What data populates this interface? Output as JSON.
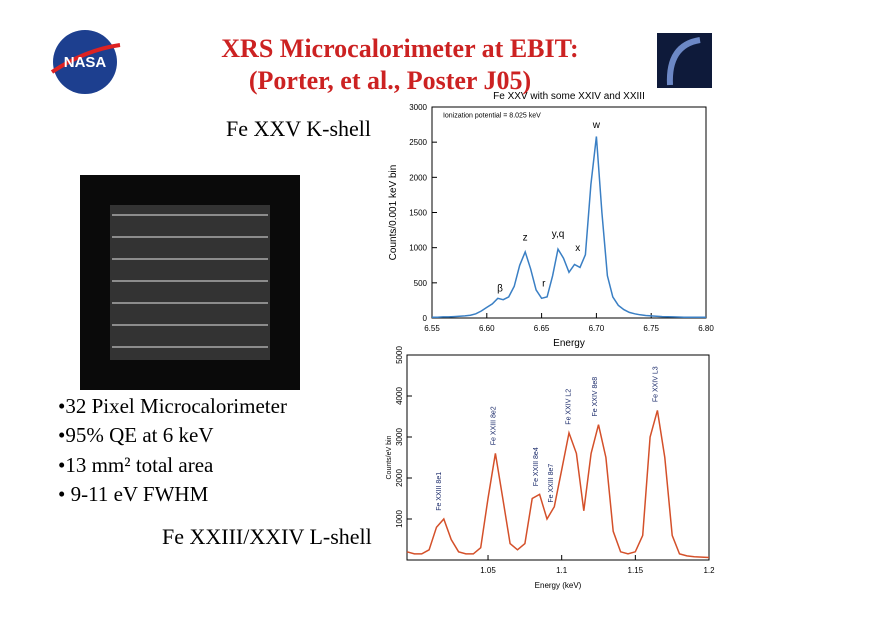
{
  "slide": {
    "logo": "NASA",
    "title_line1": "XRS Microcalorimeter at EBIT:",
    "title_line2": "(Porter, et al., Poster J05)",
    "label_top": "Fe XXV K-shell",
    "label_bottom": "Fe XXIII/XXIV L-shell",
    "bullets": [
      "•32 Pixel Microcalorimeter",
      "•95% QE at 6 keV",
      "•13 mm² total area",
      "• 9-11 eV FWHM"
    ]
  },
  "chart_data": [
    {
      "type": "line",
      "title": "Fe XXV with some XXIV and XXIII",
      "xlabel": "Energy",
      "ylabel": "Counts/0.001 keV bin",
      "x": [
        6.55,
        6.555,
        6.56,
        6.565,
        6.57,
        6.575,
        6.58,
        6.585,
        6.59,
        6.595,
        6.6,
        6.605,
        6.61,
        6.615,
        6.62,
        6.625,
        6.63,
        6.635,
        6.64,
        6.645,
        6.65,
        6.655,
        6.66,
        6.665,
        6.67,
        6.675,
        6.68,
        6.685,
        6.69,
        6.695,
        6.7,
        6.705,
        6.71,
        6.715,
        6.72,
        6.725,
        6.73,
        6.735,
        6.74,
        6.745,
        6.75,
        6.76,
        6.77,
        6.78,
        6.79,
        6.8
      ],
      "series": [
        {
          "name": "Fe XXV",
          "color": "#3a7fc4",
          "values": [
            10,
            10,
            15,
            15,
            20,
            25,
            30,
            40,
            60,
            100,
            150,
            200,
            280,
            260,
            300,
            450,
            750,
            940,
            700,
            400,
            280,
            300,
            600,
            980,
            850,
            650,
            760,
            720,
            900,
            1900,
            2580,
            1500,
            600,
            300,
            180,
            120,
            80,
            60,
            45,
            35,
            30,
            20,
            15,
            12,
            10,
            10
          ]
        }
      ],
      "xlim": [
        6.55,
        6.8
      ],
      "xticks": [
        6.55,
        {
          "value": 6.6,
          "label": "6.60"
        },
        6.65,
        {
          "value": 6.7,
          "label": "6.70"
        },
        6.75,
        {
          "value": 6.8,
          "label": "6.80"
        }
      ],
      "ylim": [
        0,
        3000
      ],
      "yticks": [
        0,
        500,
        1000,
        1500,
        2000,
        2500,
        3000
      ],
      "annotations": [
        {
          "text": "Ionization potential = 8.025 keV",
          "x": 6.56,
          "y": 2850
        },
        {
          "text": "w",
          "x": 6.7,
          "y": 2700
        },
        {
          "text": "z",
          "x": 6.635,
          "y": 1100
        },
        {
          "text": "y,q",
          "x": 6.665,
          "y": 1150
        },
        {
          "text": "x",
          "x": 6.683,
          "y": 950
        },
        {
          "text": "r",
          "x": 6.652,
          "y": 450
        },
        {
          "text": "β",
          "x": 6.612,
          "y": 380
        }
      ]
    },
    {
      "type": "line",
      "xlabel": "Energy (keV)",
      "ylabel": "Counts/eV bin",
      "x": [
        0.995,
        1.0,
        1.005,
        1.01,
        1.015,
        1.02,
        1.025,
        1.03,
        1.035,
        1.04,
        1.045,
        1.05,
        1.055,
        1.06,
        1.065,
        1.07,
        1.075,
        1.08,
        1.085,
        1.09,
        1.095,
        1.1,
        1.105,
        1.11,
        1.115,
        1.12,
        1.125,
        1.13,
        1.135,
        1.14,
        1.145,
        1.15,
        1.155,
        1.16,
        1.165,
        1.17,
        1.175,
        1.18,
        1.185,
        1.19,
        1.195,
        1.2
      ],
      "series": [
        {
          "name": "Fe L-shell",
          "color": "#d4502a",
          "values": [
            200,
            150,
            150,
            250,
            800,
            1000,
            500,
            200,
            150,
            150,
            300,
            1500,
            2600,
            1500,
            400,
            250,
            400,
            1500,
            1600,
            1000,
            1300,
            2200,
            3100,
            2600,
            1200,
            2600,
            3300,
            2500,
            700,
            200,
            150,
            200,
            600,
            3000,
            3650,
            2500,
            600,
            150,
            100,
            80,
            70,
            60
          ]
        }
      ],
      "xlim": [
        0.995,
        1.2
      ],
      "xticks": [
        1.05,
        1.1,
        1.15,
        1.2
      ],
      "ylim": [
        0,
        5000
      ],
      "yticks": [
        1000,
        2000,
        3000,
        4000,
        5000
      ],
      "annotations": [
        {
          "text": "Fe XXIII 8e1",
          "x": 1.018,
          "y": 1200
        },
        {
          "text": "Fe XXIII 8e2",
          "x": 1.055,
          "y": 2800
        },
        {
          "text": "Fe XXIII 8e4",
          "x": 1.084,
          "y": 1800
        },
        {
          "text": "Fe XXIII 8e7",
          "x": 1.094,
          "y": 1400
        },
        {
          "text": "Fe XXIV L2",
          "x": 1.106,
          "y": 3300
        },
        {
          "text": "Fe XXIV 8e8",
          "x": 1.124,
          "y": 3500
        },
        {
          "text": "Fe XXIV L3",
          "x": 1.165,
          "y": 3850
        }
      ]
    }
  ]
}
